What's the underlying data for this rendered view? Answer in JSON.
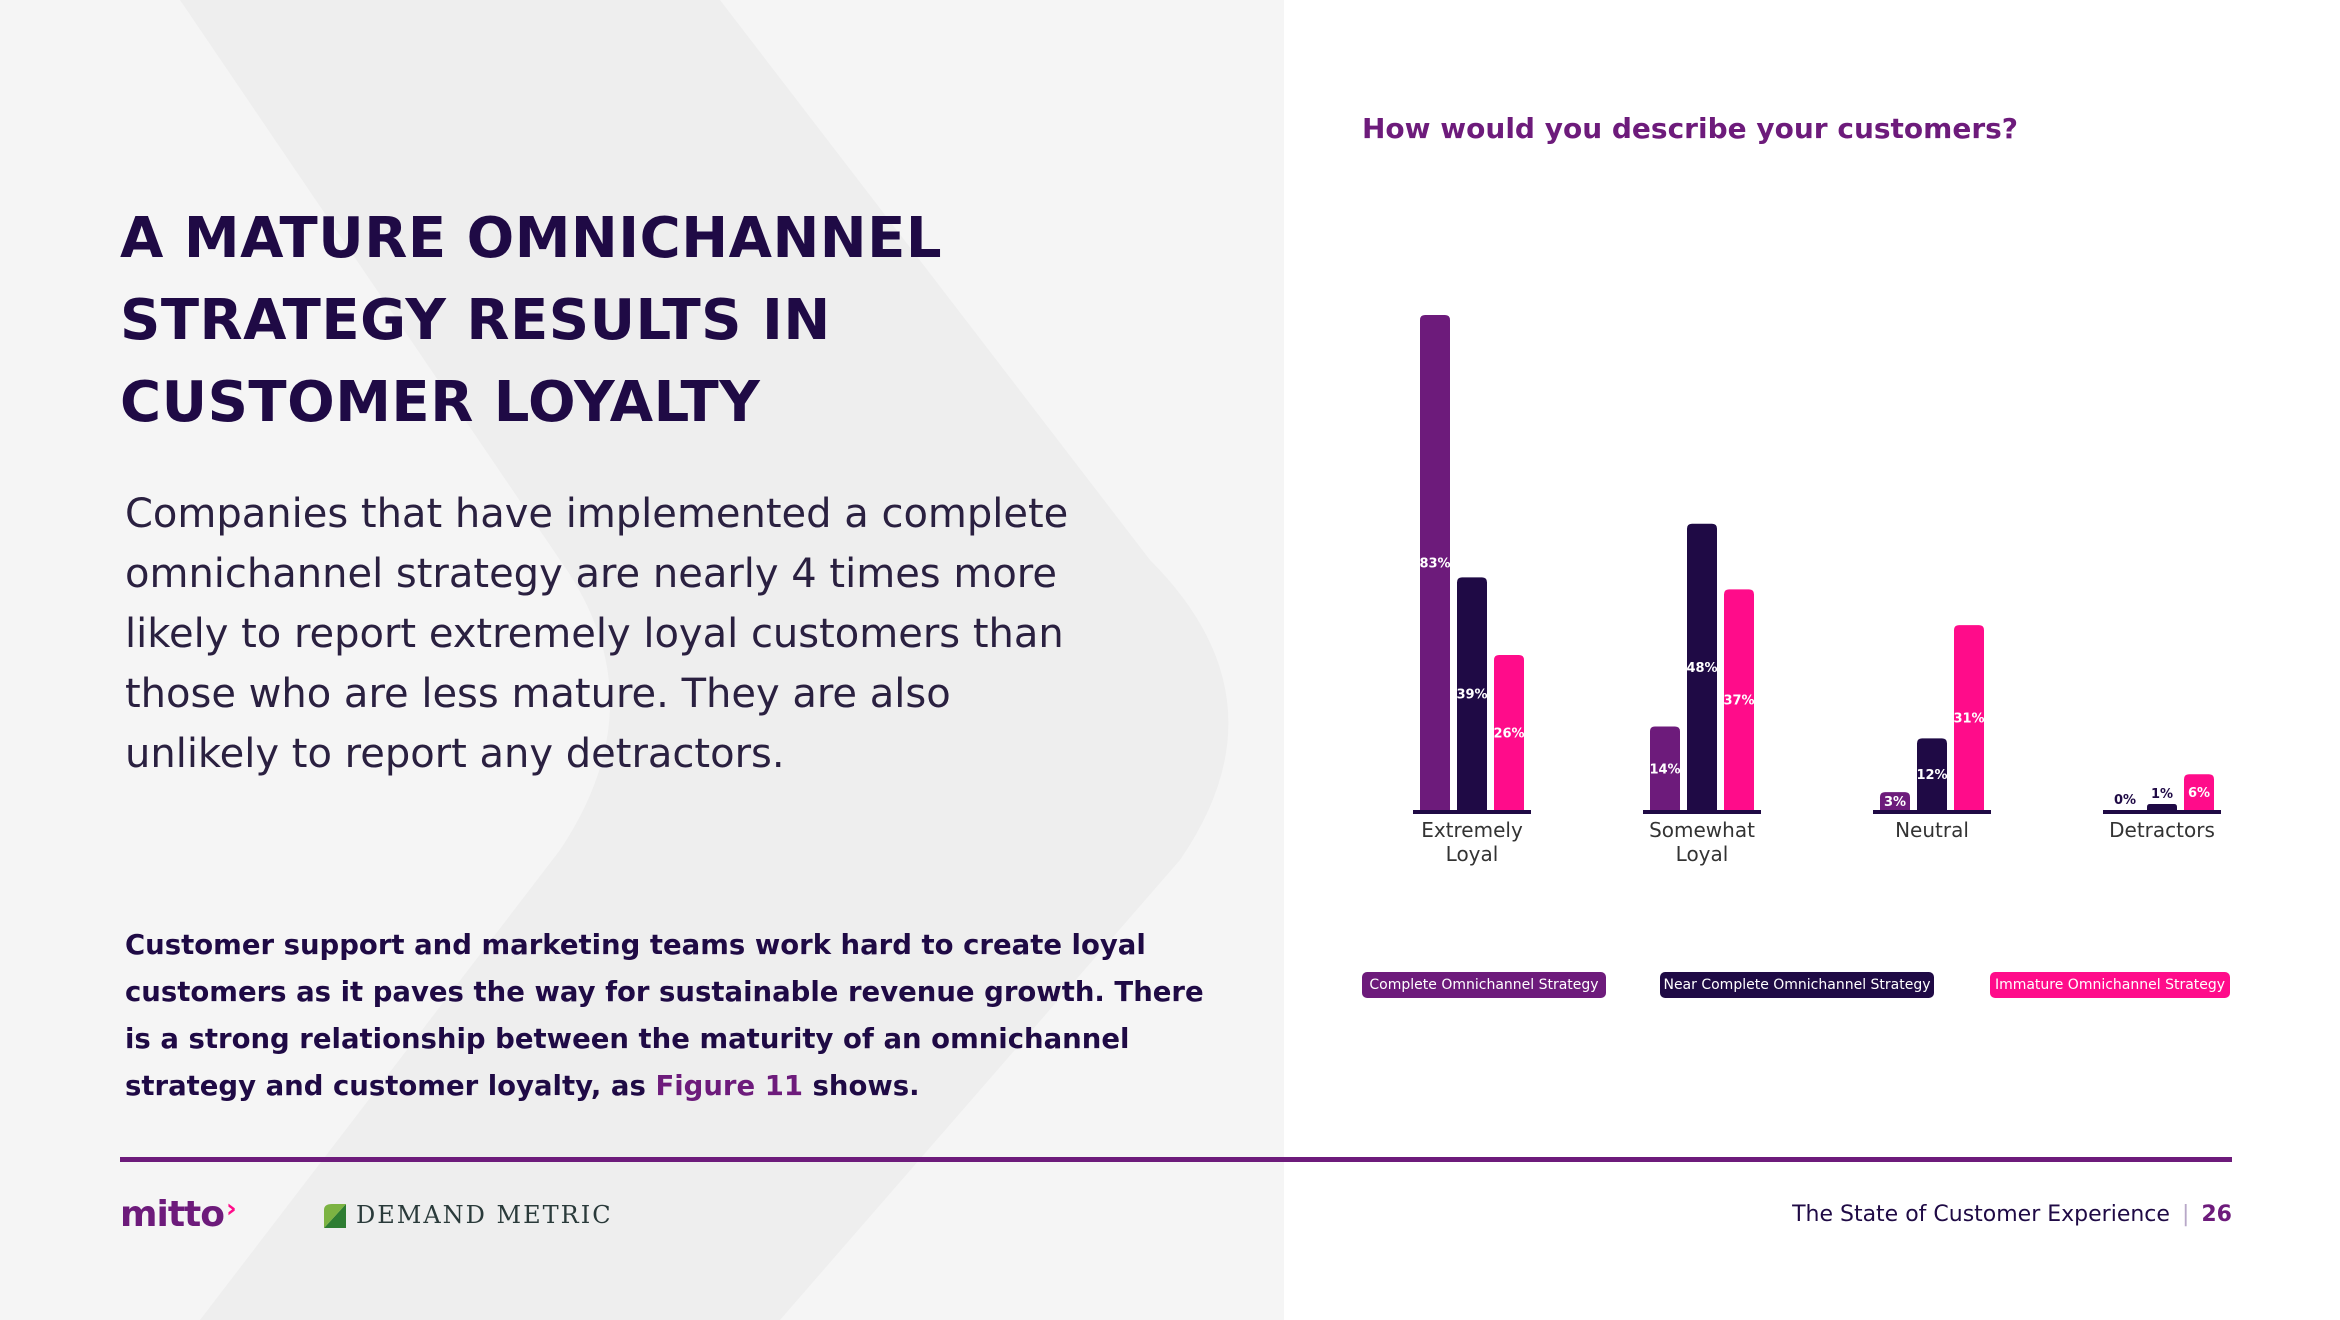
{
  "headline": {
    "line1": "A MATURE OMNICHANNEL",
    "line2": "STRATEGY RESULTS IN",
    "line3": "CUSTOMER LOYALTY"
  },
  "intro": "Companies that have implemented a complete omnichannel strategy are nearly 4 times more likely to report extremely loyal customers than those who are less mature. They are also unlikely to report any detractors.",
  "detail": {
    "text": "Customer support and marketing teams work hard to create loyal customers as it paves the way for sustainable revenue growth. There is a strong relationship between the maturity of an omnichannel strategy and customer loyalty, as ",
    "link": "Figure 11",
    "suffix": " shows."
  },
  "colors": {
    "complete": "#6d1b7b",
    "near": "#1f0a45",
    "immature": "#ff0c8a"
  },
  "chart_data": {
    "type": "bar",
    "title": "How would you describe your customers?",
    "categories": [
      "Extremely Loyal",
      "Somewhat Loyal",
      "Neutral",
      "Detractors"
    ],
    "series": [
      {
        "name": "Complete Omnichannel Strategy",
        "values": [
          83,
          14,
          3,
          0
        ]
      },
      {
        "name": "Near Complete Omnichannel Strategy",
        "values": [
          39,
          48,
          12,
          1
        ]
      },
      {
        "name": "Immature Omnichannel Strategy",
        "values": [
          26,
          37,
          31,
          6
        ]
      }
    ],
    "value_suffix": "%",
    "xlabel": "",
    "ylabel": "",
    "ylim": [
      0,
      83
    ],
    "grid": false,
    "legend_position": "bottom"
  },
  "footer": {
    "mitto": "mitto",
    "demand_metric": "DEMAND METRIC",
    "report_title": "The State of Customer Experience",
    "page_number": "26"
  }
}
